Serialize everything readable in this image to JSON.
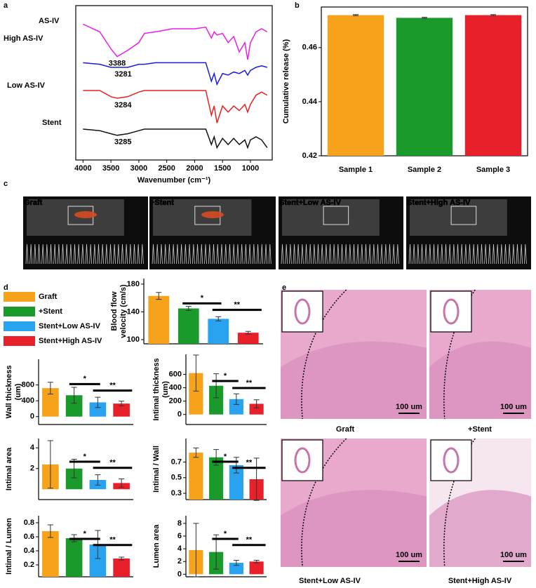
{
  "panel_labels": [
    "a",
    "b",
    "c",
    "d",
    "e"
  ],
  "chart_data": [
    {
      "type": "line",
      "xlabel": "Wavenumber (cm⁻¹)",
      "x": [
        4000,
        3700,
        3500,
        3388,
        3200,
        3000,
        2900,
        2700,
        2400,
        2000,
        1800,
        1700,
        1650,
        1600,
        1500,
        1400,
        1300,
        1200,
        1100,
        1050,
        1000,
        900,
        800,
        700
      ],
      "xlim": [
        4130,
        610
      ],
      "xticks": [
        4000,
        3500,
        3000,
        2500,
        2000,
        1500,
        1000
      ],
      "ylim": [
        0,
        100
      ],
      "series": [
        {
          "name": "AS-IV",
          "color": "#e81ee8",
          "peak": 3388,
          "values": [
            88,
            83,
            72,
            67,
            71,
            76,
            82,
            83,
            85,
            85,
            86,
            79,
            83,
            81,
            82,
            76,
            80,
            70,
            76,
            65,
            76,
            83,
            85,
            83
          ]
        },
        {
          "name": "High AS-IV",
          "color": "#1a1ae0",
          "peak": 3281,
          "values": [
            63,
            62,
            60,
            60,
            60,
            62,
            62,
            63,
            63,
            63,
            63,
            51,
            56,
            49,
            56,
            55,
            57,
            56,
            58,
            55,
            58,
            60,
            61,
            60
          ]
        },
        {
          "name": "Low AS-IV",
          "color": "#e82020",
          "peak": 3284,
          "values": [
            45,
            45,
            41,
            40,
            41,
            44,
            45,
            45,
            45,
            45,
            45,
            29,
            35,
            24,
            35,
            31,
            35,
            32,
            36,
            31,
            36,
            42,
            44,
            42
          ]
        },
        {
          "name": "Stent",
          "color": "#111111",
          "peak": 3285,
          "values": [
            20,
            19,
            17,
            16,
            17,
            19,
            20,
            20,
            20,
            20,
            20,
            10,
            15,
            8,
            14,
            10,
            14,
            10,
            13,
            8,
            13,
            15,
            13,
            8
          ]
        }
      ]
    },
    {
      "type": "bar",
      "ylabel": [
        "Cumulative release (%)"
      ],
      "categories": [
        "Sample 1",
        "Sample 2",
        "Sample 3"
      ],
      "values": [
        0.472,
        0.471,
        0.472
      ],
      "errors": [
        0.0002,
        0.0002,
        0.0002
      ],
      "colors": [
        "#f7a21b",
        "#1a9a2a",
        "#e8202a"
      ],
      "ylim": [
        0.42,
        0.475
      ],
      "yticks": [
        0.42,
        0.44,
        0.46
      ]
    },
    {
      "type": "bar",
      "ylabel": [
        "Blood flow",
        "velocity (cm/s)"
      ],
      "values": [
        163,
        145,
        130,
        110
      ],
      "errors": [
        5,
        3,
        3,
        2
      ],
      "ylim": [
        94,
        188
      ],
      "yticks": [
        100,
        140,
        180
      ],
      "significance": [
        "*",
        "**"
      ]
    },
    {
      "type": "bar",
      "ylabel": [
        "Wall thickness",
        "(um)"
      ],
      "values": [
        720,
        540,
        360,
        330
      ],
      "errors": [
        150,
        200,
        130,
        60
      ],
      "ylim": [
        -200,
        1450
      ],
      "yticks": [
        0,
        400,
        800
      ],
      "significance": [
        "*",
        "**"
      ]
    },
    {
      "type": "bar",
      "ylabel": [
        "Intimal thickness",
        "(um)"
      ],
      "values": [
        620,
        430,
        230,
        160
      ],
      "errors": [
        270,
        180,
        80,
        60
      ],
      "ylim": [
        -150,
        900
      ],
      "yticks": [
        0,
        200,
        400,
        600
      ],
      "significance": [
        "*",
        "**"
      ]
    },
    {
      "type": "bar",
      "ylabel": [
        "Intimal area"
      ],
      "values": [
        2.4,
        2.0,
        0.9,
        0.6
      ],
      "errors": [
        2.3,
        0.9,
        0.5,
        0.4
      ],
      "ylim": [
        -1,
        4.9
      ],
      "yticks": [
        2,
        4
      ],
      "significance": [
        "*",
        "**"
      ]
    },
    {
      "type": "bar",
      "ylabel": [
        "Intimal / Wall"
      ],
      "values": [
        0.82,
        0.76,
        0.66,
        0.48
      ],
      "errors": [
        0.06,
        0.1,
        0.1,
        0.27
      ],
      "ylim": [
        0.22,
        1.0
      ],
      "yticks": [
        0.3,
        0.5,
        0.7
      ],
      "significance": [
        "*",
        "**"
      ]
    },
    {
      "type": "bar",
      "ylabel": [
        "Intimal / Lumen"
      ],
      "values": [
        0.68,
        0.58,
        0.49,
        0.29
      ],
      "errors": [
        0.09,
        0.05,
        0.2,
        0.02
      ],
      "ylim": [
        0.03,
        0.9
      ],
      "yticks": [
        0.2,
        0.4,
        0.6,
        0.8
      ],
      "significance": [
        "*",
        "**"
      ]
    },
    {
      "type": "bar",
      "ylabel": [
        "Lumen area"
      ],
      "values": [
        3.8,
        3.5,
        1.8,
        2.0
      ],
      "errors": [
        4.2,
        2.7,
        0.4,
        0.2
      ],
      "ylim": [
        -0.4,
        9.2
      ],
      "yticks": [
        0,
        2,
        4,
        6,
        8
      ],
      "significance": [
        "*",
        "**"
      ]
    }
  ],
  "legend": [
    {
      "name": "Graft",
      "color": "#f7a21b"
    },
    {
      "name": "+Stent",
      "color": "#1a9a2a"
    },
    {
      "name": "Stent+Low AS-IV",
      "color": "#29a3ef"
    },
    {
      "name": "Stent+High AS-IV",
      "color": "#e8202a"
    }
  ],
  "ultrasound": [
    "Graft",
    "+Stent",
    "Stent+Low AS-IV",
    "Stent+High AS-IV"
  ],
  "histology": {
    "labels": [
      "Graft",
      "+Stent",
      "Stent+Low AS-IV",
      "Stent+High AS-IV"
    ],
    "scale_bar": "100 um"
  }
}
